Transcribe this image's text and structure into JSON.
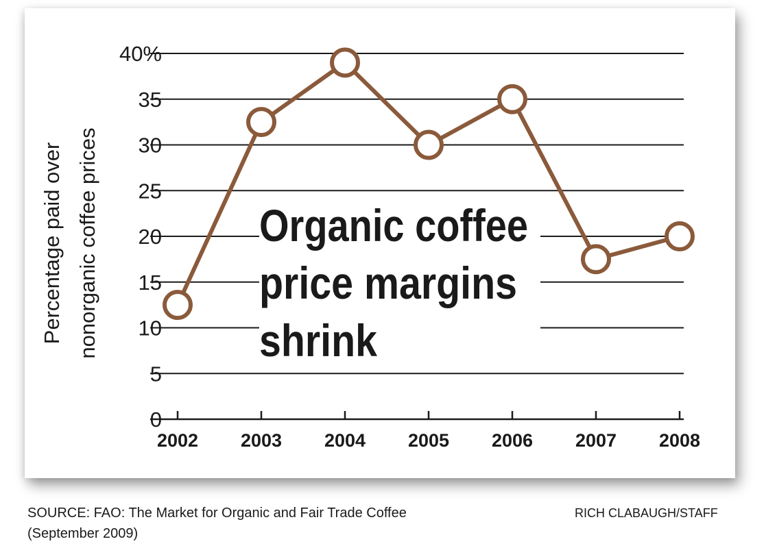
{
  "chart_data": {
    "type": "line",
    "title_lines": [
      "Organic coffee",
      "price margins",
      "shrink"
    ],
    "ylabel_lines": [
      "Percentage paid over",
      "nonorganic coffee prices"
    ],
    "xlabel": "",
    "categories": [
      "2002",
      "2003",
      "2004",
      "2005",
      "2006",
      "2007",
      "2008"
    ],
    "series": [
      {
        "name": "Percentage paid over nonorganic coffee prices",
        "values": [
          12.5,
          32.5,
          39,
          30,
          35,
          17.5,
          20
        ]
      }
    ],
    "ylim": [
      0,
      40
    ],
    "yticks": [
      0,
      5,
      10,
      15,
      20,
      25,
      30,
      35,
      40
    ],
    "ytick_labels": [
      "0",
      "5",
      "10",
      "15",
      "20",
      "25",
      "30",
      "35",
      "40%"
    ],
    "grid": true,
    "colors": {
      "line": "#8a5a3b",
      "marker_fill": "#ffffff",
      "grid": "#1a1a1a",
      "text": "#1a1a1a"
    }
  },
  "source": "SOURCE: FAO: The Market for Organic and Fair Trade Coffee (September 2009)",
  "credit": "RICH CLABAUGH/STAFF"
}
